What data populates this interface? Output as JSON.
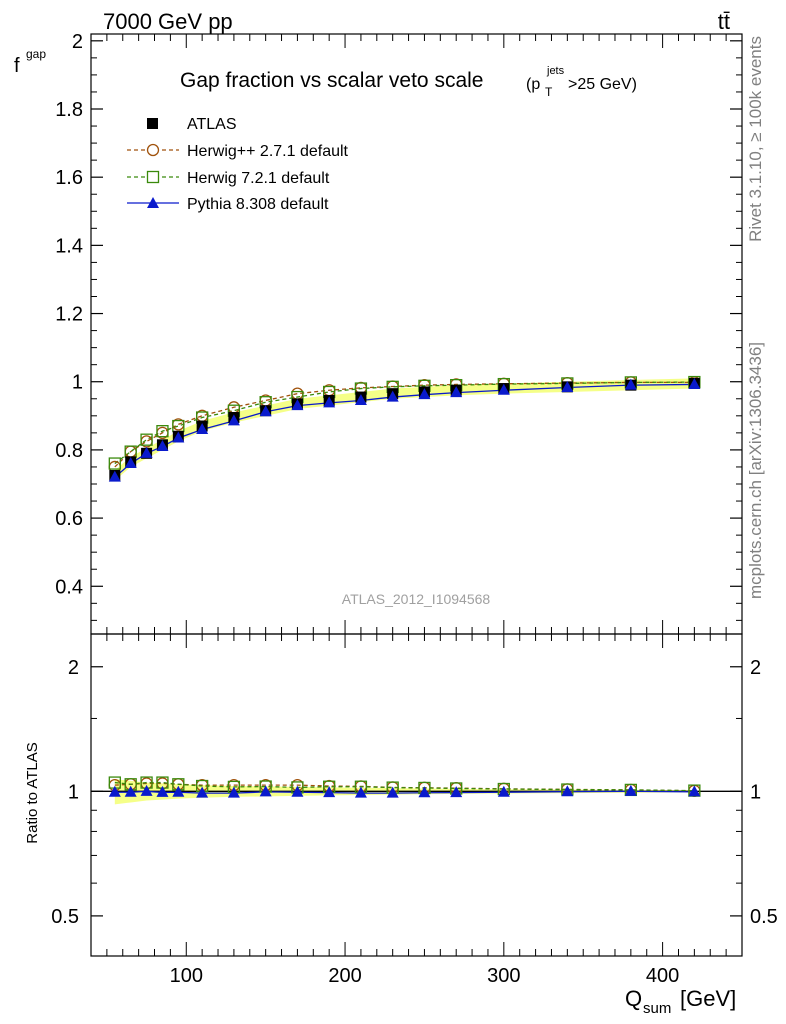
{
  "header": {
    "collision_label": "7000 GeV pp",
    "process_label": "tt̄"
  },
  "side_labels": {
    "rivet": "Rivet 3.1.10, ≥ 100k events",
    "mcplots": "mcplots.cern.ch [arXiv:1306.3436]"
  },
  "chart_data": [
    {
      "type": "line",
      "title": "Gap fraction vs scalar veto scale",
      "title_cut": {
        "prefix": "(p",
        "sub": "T",
        "sup": "jets",
        "suffix": ">25 GeV)"
      },
      "ylabel": "f",
      "ylabel_sub": "gap",
      "analysis_label": "ATLAS_2012_I1094568",
      "ylim": [
        0.26,
        2.02
      ],
      "xlim": [
        40,
        450
      ],
      "yticks": [
        0.4,
        0.6,
        0.8,
        1,
        1.2,
        1.4,
        1.6,
        1.8,
        2
      ],
      "ytick_labels": [
        "0.4",
        "0.6",
        "0.8",
        "1",
        "1.2",
        "1.4",
        "1.6",
        "1.8",
        "2"
      ],
      "legend_position": "top-left",
      "x": [
        55,
        65,
        75,
        85,
        95,
        110,
        130,
        150,
        170,
        190,
        210,
        230,
        250,
        270,
        300,
        340,
        380,
        420
      ],
      "data_band_half_width": 0.015,
      "series": [
        {
          "name": "ATLAS",
          "marker": "filled-square",
          "color": "#000000",
          "values": [
            0.725,
            0.765,
            0.79,
            0.815,
            0.84,
            0.87,
            0.895,
            0.915,
            0.935,
            0.945,
            0.955,
            0.965,
            0.97,
            0.975,
            0.98,
            0.985,
            0.99,
            0.995
          ]
        },
        {
          "name": "Herwig++ 2.7.1 default",
          "marker": "open-circle",
          "color": "#a0520c",
          "dash": "dashed",
          "values": [
            0.75,
            0.795,
            0.825,
            0.85,
            0.875,
            0.9,
            0.925,
            0.945,
            0.965,
            0.975,
            0.982,
            0.986,
            0.99,
            0.992,
            0.994,
            0.996,
            0.998,
            0.998
          ]
        },
        {
          "name": "Herwig 7.2.1 default",
          "marker": "open-square",
          "color": "#3a8a0c",
          "dash": "dashed",
          "values": [
            0.76,
            0.795,
            0.83,
            0.855,
            0.87,
            0.895,
            0.915,
            0.94,
            0.955,
            0.97,
            0.98,
            0.985,
            0.988,
            0.99,
            0.993,
            0.995,
            0.998,
            0.999
          ]
        },
        {
          "name": "Pythia 8.308 default",
          "marker": "filled-triangle",
          "color": "#0a1acc",
          "dash": "solid",
          "values": [
            0.72,
            0.76,
            0.79,
            0.81,
            0.835,
            0.86,
            0.885,
            0.912,
            0.93,
            0.938,
            0.945,
            0.955,
            0.962,
            0.968,
            0.975,
            0.983,
            0.99,
            0.992
          ]
        }
      ]
    },
    {
      "type": "line",
      "ylabel": "Ratio to ATLAS",
      "xlabel": "Q",
      "xlabel_sub": "sum",
      "xlabel_unit": "[GeV]",
      "log_y": true,
      "ylim": [
        0.4,
        2.4
      ],
      "xlim": [
        40,
        450
      ],
      "yticks": [
        0.5,
        1,
        2
      ],
      "ytick_labels": [
        "0.5",
        "1",
        "2"
      ],
      "xticks": [
        100,
        200,
        300,
        400
      ],
      "xtick_labels": [
        "100",
        "200",
        "300",
        "400"
      ],
      "x": [
        55,
        65,
        75,
        85,
        95,
        110,
        130,
        150,
        170,
        190,
        210,
        230,
        250,
        270,
        300,
        340,
        380,
        420
      ],
      "band_half_width": [
        0.07,
        0.06,
        0.05,
        0.045,
        0.04,
        0.035,
        0.03,
        0.028,
        0.025,
        0.022,
        0.02,
        0.018,
        0.016,
        0.014,
        0.012,
        0.01,
        0.008,
        0.006
      ],
      "series": [
        {
          "name": "Herwig++ 2.7.1 default",
          "color": "#a0520c",
          "marker": "open-circle",
          "dash": "dashed",
          "values": [
            1.035,
            1.04,
            1.045,
            1.045,
            1.04,
            1.035,
            1.035,
            1.035,
            1.035,
            1.03,
            1.028,
            1.022,
            1.02,
            1.018,
            1.014,
            1.011,
            1.008,
            1.003
          ]
        },
        {
          "name": "Herwig 7.2.1 default",
          "color": "#3a8a0c",
          "marker": "open-square",
          "dash": "dashed",
          "values": [
            1.05,
            1.04,
            1.05,
            1.05,
            1.04,
            1.03,
            1.025,
            1.027,
            1.022,
            1.026,
            1.026,
            1.021,
            1.019,
            1.016,
            1.013,
            1.01,
            1.008,
            1.004
          ]
        },
        {
          "name": "Pythia 8.308 default",
          "color": "#0a1acc",
          "marker": "filled-triangle",
          "dash": "solid",
          "values": [
            0.995,
            0.995,
            1.0,
            0.994,
            0.995,
            0.99,
            0.99,
            0.997,
            0.995,
            0.993,
            0.99,
            0.99,
            0.992,
            0.993,
            0.995,
            0.998,
            1.0,
            0.997
          ]
        }
      ]
    }
  ],
  "colors": {
    "band": "#f3ff6a",
    "band_line": "#000000"
  }
}
